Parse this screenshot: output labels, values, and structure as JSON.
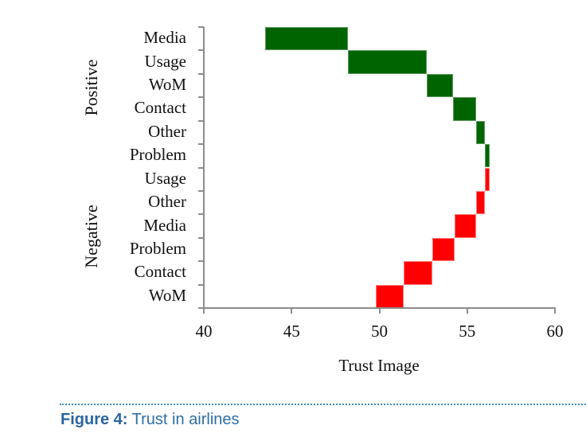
{
  "chart_data": {
    "type": "bar",
    "subtype": "floating-waterfall-horizontal",
    "title": "",
    "xlabel": "Trust Image",
    "ylabel": "",
    "xlim": [
      40,
      60
    ],
    "xticks": [
      40,
      45,
      50,
      55,
      60
    ],
    "grid": false,
    "legend": null,
    "groups": [
      {
        "name": "Positive",
        "color": "#006400",
        "categories": [
          "Media",
          "Usage",
          "WoM",
          "Contact",
          "Other",
          "Problem"
        ]
      },
      {
        "name": "Negative",
        "color": "#ff0000",
        "categories": [
          "Usage",
          "Other",
          "Media",
          "Problem",
          "Contact",
          "WoM"
        ]
      }
    ],
    "categories": [
      "Media",
      "Usage",
      "WoM",
      "Contact",
      "Other",
      "Problem",
      "Usage",
      "Other",
      "Media",
      "Problem",
      "Contact",
      "WoM"
    ],
    "series": [
      {
        "name": "Positive",
        "color": "#006400",
        "bars": [
          {
            "category": "Media",
            "start": 43.5,
            "end": 48.2
          },
          {
            "category": "Usage",
            "start": 48.2,
            "end": 52.7
          },
          {
            "category": "WoM",
            "start": 52.7,
            "end": 54.2
          },
          {
            "category": "Contact",
            "start": 54.2,
            "end": 55.5
          },
          {
            "category": "Other",
            "start": 55.5,
            "end": 56.0
          },
          {
            "category": "Problem",
            "start": 56.0,
            "end": 56.3
          }
        ]
      },
      {
        "name": "Negative",
        "color": "#ff0000",
        "bars": [
          {
            "category": "Usage",
            "start": 56.0,
            "end": 56.3
          },
          {
            "category": "Other",
            "start": 55.5,
            "end": 56.0
          },
          {
            "category": "Media",
            "start": 54.3,
            "end": 55.5
          },
          {
            "category": "Problem",
            "start": 53.0,
            "end": 54.3
          },
          {
            "category": "Contact",
            "start": 51.4,
            "end": 53.0
          },
          {
            "category": "WoM",
            "start": 49.8,
            "end": 51.4
          }
        ]
      }
    ]
  },
  "axis": {
    "x_title": "Trust Image",
    "x_ticks": [
      "40",
      "45",
      "50",
      "55",
      "60"
    ],
    "group_labels": {
      "positive": "Positive",
      "negative": "Negative"
    },
    "row_labels": [
      "Media",
      "Usage",
      "WoM",
      "Contact",
      "Other",
      "Problem",
      "Usage",
      "Other",
      "Media",
      "Problem",
      "Contact",
      "WoM"
    ]
  },
  "caption": {
    "label": "Figure 4:",
    "text": " Trust in airlines"
  },
  "colors": {
    "positive": "#006400",
    "negative": "#ff0000",
    "axis": "#8c8c8c",
    "caption": "#2e6fa6",
    "divider": "#3d8fb8"
  }
}
